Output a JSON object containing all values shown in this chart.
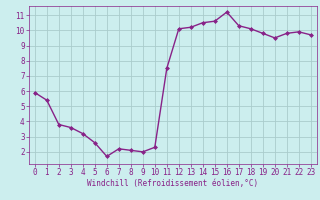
{
  "x": [
    0,
    1,
    2,
    3,
    4,
    5,
    6,
    7,
    8,
    9,
    10,
    11,
    12,
    13,
    14,
    15,
    16,
    17,
    18,
    19,
    20,
    21,
    22,
    23
  ],
  "y": [
    5.9,
    5.4,
    3.8,
    3.6,
    3.2,
    2.6,
    1.7,
    2.2,
    2.1,
    2.0,
    2.3,
    7.5,
    10.1,
    10.2,
    10.5,
    10.6,
    11.2,
    10.3,
    10.1,
    9.8,
    9.5,
    9.8,
    9.9,
    9.7
  ],
  "line_color": "#882288",
  "marker": "D",
  "marker_size": 2,
  "bg_color": "#cceeee",
  "grid_color": "#aacccc",
  "xlabel": "Windchill (Refroidissement éolien,°C)",
  "xlabel_color": "#882288",
  "tick_color": "#882288",
  "xlim": [
    -0.5,
    23.5
  ],
  "ylim": [
    1.2,
    11.6
  ],
  "yticks": [
    2,
    3,
    4,
    5,
    6,
    7,
    8,
    9,
    10,
    11
  ],
  "xticks": [
    0,
    1,
    2,
    3,
    4,
    5,
    6,
    7,
    8,
    9,
    10,
    11,
    12,
    13,
    14,
    15,
    16,
    17,
    18,
    19,
    20,
    21,
    22,
    23
  ],
  "linewidth": 1.0,
  "tick_fontsize": 5.5,
  "xlabel_fontsize": 5.5
}
